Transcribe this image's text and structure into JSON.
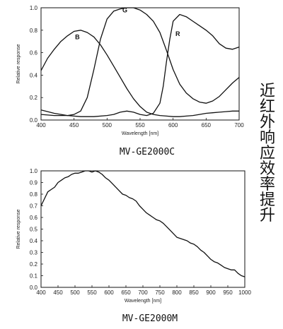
{
  "side_caption": [
    "近",
    "红",
    "外",
    "响",
    "应",
    "效",
    "率",
    "提",
    "升"
  ],
  "chart_data": [
    {
      "type": "line",
      "caption": "MV-GE2000C",
      "xlabel": "Wavelength [nm]",
      "ylabel": "Relative response",
      "xlim": [
        400,
        700
      ],
      "ylim": [
        0,
        1
      ],
      "xticks": [
        "400",
        "450",
        "500",
        "550",
        "600",
        "650",
        "700"
      ],
      "yticks": [
        "0.0",
        "0.2",
        "0.4",
        "0.6",
        "0.8",
        "1.0"
      ],
      "grid": false,
      "series": [
        {
          "name": "B",
          "color": "#111111",
          "x": [
            400,
            410,
            420,
            430,
            440,
            450,
            460,
            470,
            480,
            490,
            500,
            510,
            520,
            530,
            540,
            550,
            560,
            570,
            580,
            590,
            600,
            610,
            620,
            630,
            640,
            650,
            660,
            670,
            680,
            690,
            700
          ],
          "y": [
            0.44,
            0.55,
            0.63,
            0.7,
            0.75,
            0.79,
            0.8,
            0.78,
            0.74,
            0.67,
            0.58,
            0.48,
            0.38,
            0.28,
            0.19,
            0.12,
            0.07,
            0.05,
            0.04,
            0.035,
            0.03,
            0.03,
            0.035,
            0.04,
            0.05,
            0.06,
            0.065,
            0.07,
            0.075,
            0.08,
            0.08
          ]
        },
        {
          "name": "G",
          "color": "#111111",
          "x": [
            400,
            420,
            440,
            450,
            460,
            470,
            480,
            490,
            500,
            510,
            520,
            530,
            540,
            550,
            560,
            570,
            580,
            590,
            600,
            610,
            620,
            630,
            640,
            650,
            660,
            670,
            680,
            690,
            700
          ],
          "y": [
            0.05,
            0.04,
            0.04,
            0.05,
            0.08,
            0.2,
            0.45,
            0.72,
            0.9,
            0.97,
            0.99,
            1.0,
            1.0,
            0.98,
            0.94,
            0.88,
            0.78,
            0.62,
            0.45,
            0.32,
            0.24,
            0.19,
            0.16,
            0.15,
            0.17,
            0.21,
            0.27,
            0.33,
            0.38
          ]
        },
        {
          "name": "R",
          "color": "#111111",
          "x": [
            400,
            420,
            440,
            460,
            480,
            500,
            510,
            520,
            530,
            540,
            550,
            560,
            570,
            580,
            585,
            590,
            595,
            600,
            610,
            620,
            630,
            640,
            650,
            660,
            670,
            680,
            690,
            700
          ],
          "y": [
            0.09,
            0.06,
            0.04,
            0.03,
            0.03,
            0.04,
            0.05,
            0.07,
            0.08,
            0.07,
            0.05,
            0.04,
            0.06,
            0.15,
            0.3,
            0.52,
            0.72,
            0.88,
            0.94,
            0.92,
            0.88,
            0.84,
            0.8,
            0.75,
            0.68,
            0.64,
            0.63,
            0.65
          ]
        }
      ]
    },
    {
      "type": "line",
      "caption": "MV-GE2000M",
      "xlabel": "Wavelength [nm]",
      "ylabel": "Relative response",
      "xlim": [
        400,
        1000
      ],
      "ylim": [
        0,
        1
      ],
      "xticks": [
        "400",
        "450",
        "500",
        "550",
        "600",
        "650",
        "700",
        "750",
        "800",
        "850",
        "900",
        "950",
        "1000"
      ],
      "yticks": [
        "0.0",
        "0.1",
        "0.2",
        "0.3",
        "0.4",
        "0.5",
        "0.6",
        "0.7",
        "0.8",
        "0.9",
        "1.0"
      ],
      "grid": false,
      "series": [
        {
          "color": "#111111",
          "x": [
            400,
            410,
            420,
            430,
            440,
            450,
            460,
            470,
            480,
            490,
            500,
            510,
            520,
            530,
            540,
            550,
            560,
            570,
            580,
            590,
            600,
            610,
            620,
            630,
            640,
            650,
            660,
            670,
            680,
            690,
            700,
            710,
            720,
            730,
            740,
            750,
            760,
            770,
            780,
            790,
            800,
            810,
            820,
            830,
            840,
            850,
            860,
            870,
            880,
            890,
            900,
            910,
            920,
            930,
            940,
            950,
            960,
            970,
            980,
            990,
            1000
          ],
          "y": [
            0.7,
            0.76,
            0.82,
            0.84,
            0.86,
            0.9,
            0.92,
            0.94,
            0.95,
            0.97,
            0.98,
            0.98,
            0.99,
            1.0,
            1.0,
            0.99,
            1.0,
            0.99,
            0.97,
            0.94,
            0.92,
            0.89,
            0.86,
            0.83,
            0.8,
            0.79,
            0.77,
            0.76,
            0.74,
            0.7,
            0.67,
            0.64,
            0.62,
            0.6,
            0.58,
            0.57,
            0.55,
            0.52,
            0.49,
            0.46,
            0.43,
            0.42,
            0.41,
            0.4,
            0.38,
            0.37,
            0.35,
            0.32,
            0.3,
            0.27,
            0.24,
            0.22,
            0.21,
            0.19,
            0.17,
            0.16,
            0.15,
            0.15,
            0.12,
            0.1,
            0.09
          ]
        }
      ]
    }
  ]
}
